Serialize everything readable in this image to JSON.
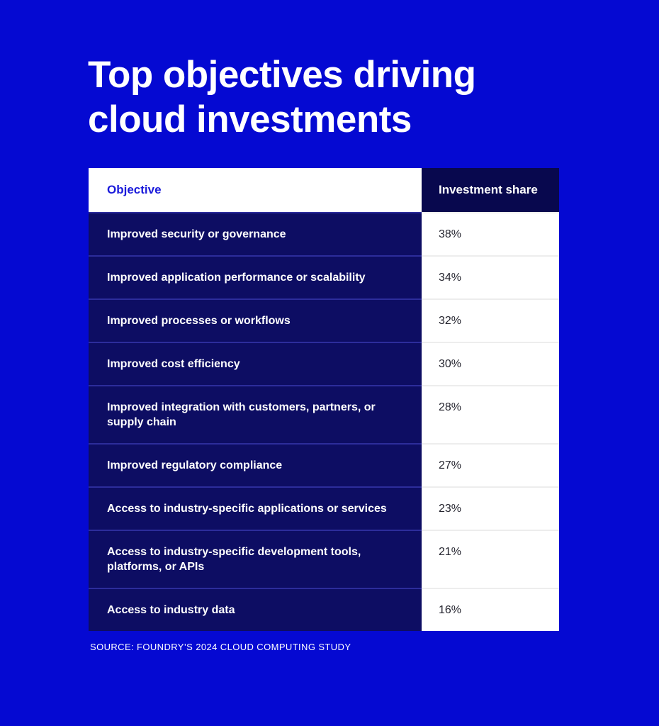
{
  "page": {
    "title_line1": "Top objectives driving",
    "title_line2": "cloud investments",
    "source": "SOURCE: FOUNDRY’S 2024 CLOUD COMPUTING STUDY"
  },
  "colors": {
    "background_blue": "#0509D2",
    "header_navy": "#08084E",
    "row_navy": "#0D0D63",
    "row_separator_navy": "#2C2C9B",
    "row_separator_gray": "#EDEDED",
    "header_objective_text": "#1A1ADB",
    "value_text": "#24242E",
    "white": "#FFFFFF"
  },
  "table": {
    "header": {
      "objective": "Objective",
      "share": "Investment share"
    },
    "rows": [
      {
        "objective": "Improved security or governance",
        "share": "38%"
      },
      {
        "objective": "Improved application performance or scalability",
        "share": "34%"
      },
      {
        "objective": "Improved processes or workflows",
        "share": "32%"
      },
      {
        "objective": "Improved cost efficiency",
        "share": "30%"
      },
      {
        "objective": "Improved integration with customers, partners, or supply chain",
        "share": "28%"
      },
      {
        "objective": "Improved regulatory compliance",
        "share": "27%"
      },
      {
        "objective": "Access to industry-specific applications or services",
        "share": "23%"
      },
      {
        "objective": "Access to industry-specific development tools, platforms, or APIs",
        "share": "21%"
      },
      {
        "objective": "Access to industry data",
        "share": "16%"
      }
    ]
  },
  "chart_data": {
    "type": "table",
    "title": "Top objectives driving cloud investments",
    "columns": [
      "Objective",
      "Investment share"
    ],
    "categories": [
      "Improved security or governance",
      "Improved application performance or scalability",
      "Improved processes or workflows",
      "Improved cost efficiency",
      "Improved integration with customers, partners, or supply chain",
      "Improved regulatory compliance",
      "Access to industry-specific applications or services",
      "Access to industry-specific development tools, platforms, or APIs",
      "Access to industry data"
    ],
    "values": [
      38,
      34,
      32,
      30,
      28,
      27,
      23,
      21,
      16
    ],
    "value_unit": "%",
    "source": "SOURCE: FOUNDRY’S 2024 CLOUD COMPUTING STUDY"
  }
}
